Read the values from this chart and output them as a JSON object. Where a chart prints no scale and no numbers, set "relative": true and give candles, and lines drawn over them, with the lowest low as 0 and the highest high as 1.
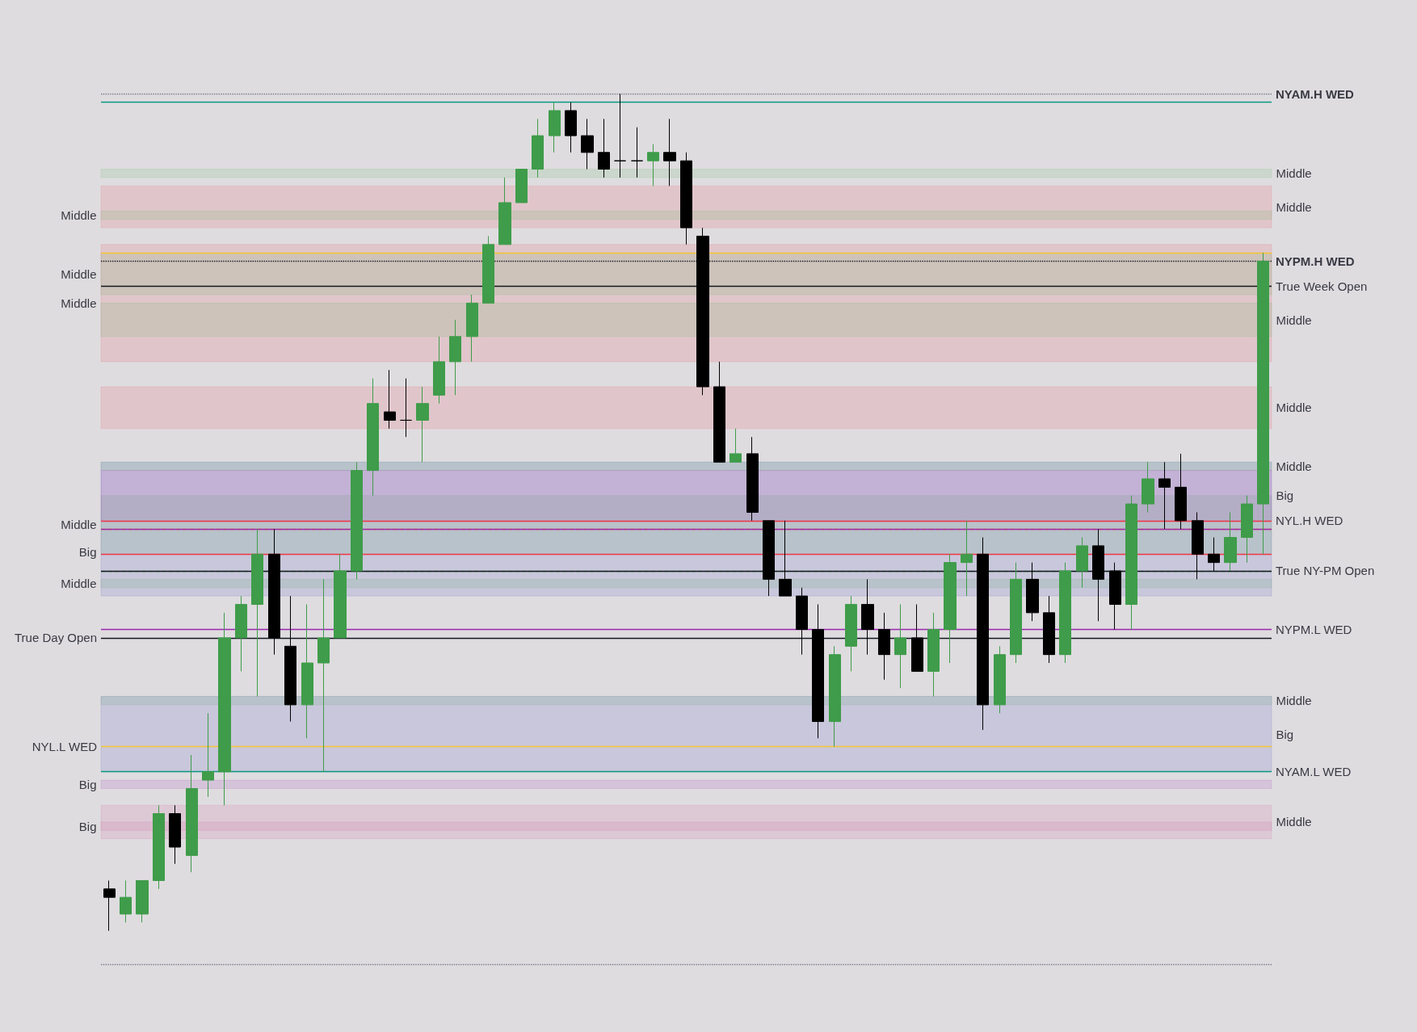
{
  "chart_data": {
    "type": "candlestick",
    "relative": true,
    "categories": [
      null,
      null,
      null,
      null,
      null,
      null,
      null,
      null,
      null,
      null,
      null,
      null,
      null,
      null,
      null,
      null,
      null,
      null,
      null,
      null,
      null,
      null,
      null,
      null,
      null,
      null,
      null,
      null,
      null,
      null,
      null,
      null,
      null,
      null,
      null,
      null,
      null,
      null,
      null,
      null,
      null,
      null,
      null,
      null,
      null,
      null,
      null,
      null,
      null,
      null,
      null,
      null,
      null,
      null,
      null,
      null,
      null,
      null,
      null,
      null,
      null,
      null,
      null,
      null,
      null,
      null,
      null,
      null,
      null,
      null,
      null
    ],
    "ohlc": [
      [
        0.05,
        0.06,
        0.0,
        0.04
      ],
      [
        0.02,
        0.06,
        0.01,
        0.04
      ],
      [
        0.02,
        0.06,
        0.01,
        0.06
      ],
      [
        0.06,
        0.15,
        0.05,
        0.14
      ],
      [
        0.14,
        0.15,
        0.08,
        0.1
      ],
      [
        0.09,
        0.21,
        0.07,
        0.17
      ],
      [
        0.18,
        0.26,
        0.16,
        0.19
      ],
      [
        0.19,
        0.38,
        0.15,
        0.35
      ],
      [
        0.35,
        0.4,
        0.31,
        0.39
      ],
      [
        0.39,
        0.48,
        0.28,
        0.45
      ],
      [
        0.45,
        0.48,
        0.33,
        0.35
      ],
      [
        0.34,
        0.4,
        0.25,
        0.27
      ],
      [
        0.27,
        0.39,
        0.23,
        0.32
      ],
      [
        0.32,
        0.42,
        0.19,
        0.35
      ],
      [
        0.35,
        0.45,
        0.35,
        0.43
      ],
      [
        0.43,
        0.56,
        0.42,
        0.55
      ],
      [
        0.55,
        0.66,
        0.52,
        0.63
      ],
      [
        0.62,
        0.67,
        0.6,
        0.61
      ],
      [
        0.61,
        0.66,
        0.59,
        0.61
      ],
      [
        0.61,
        0.65,
        0.56,
        0.63
      ],
      [
        0.64,
        0.71,
        0.63,
        0.68
      ],
      [
        0.68,
        0.73,
        0.64,
        0.71
      ],
      [
        0.71,
        0.76,
        0.68,
        0.75
      ],
      [
        0.75,
        0.83,
        0.75,
        0.82
      ],
      [
        0.82,
        0.9,
        0.82,
        0.87
      ],
      [
        0.87,
        0.91,
        0.87,
        0.91
      ],
      [
        0.91,
        0.97,
        0.9,
        0.95
      ],
      [
        0.95,
        0.99,
        0.93,
        0.98
      ],
      [
        0.98,
        0.99,
        0.93,
        0.95
      ],
      [
        0.95,
        0.97,
        0.91,
        0.93
      ],
      [
        0.93,
        0.97,
        0.9,
        0.91
      ],
      [
        0.92,
        1.0,
        0.9,
        0.92
      ],
      [
        0.92,
        0.96,
        0.9,
        0.92
      ],
      [
        0.92,
        0.94,
        0.89,
        0.93
      ],
      [
        0.93,
        0.97,
        0.89,
        0.92
      ],
      [
        0.92,
        0.93,
        0.82,
        0.84
      ],
      [
        0.83,
        0.84,
        0.64,
        0.65
      ],
      [
        0.65,
        0.68,
        0.56,
        0.56
      ],
      [
        0.56,
        0.6,
        0.56,
        0.57
      ],
      [
        0.57,
        0.59,
        0.49,
        0.5
      ],
      [
        0.49,
        0.49,
        0.4,
        0.42
      ],
      [
        0.42,
        0.49,
        0.4,
        0.4
      ],
      [
        0.4,
        0.41,
        0.33,
        0.36
      ],
      [
        0.36,
        0.39,
        0.23,
        0.25
      ],
      [
        0.25,
        0.34,
        0.22,
        0.33
      ],
      [
        0.34,
        0.4,
        0.31,
        0.39
      ],
      [
        0.39,
        0.42,
        0.33,
        0.36
      ],
      [
        0.36,
        0.38,
        0.3,
        0.33
      ],
      [
        0.33,
        0.39,
        0.29,
        0.35
      ],
      [
        0.35,
        0.39,
        0.31,
        0.31
      ],
      [
        0.31,
        0.38,
        0.28,
        0.36
      ],
      [
        0.36,
        0.45,
        0.32,
        0.44
      ],
      [
        0.44,
        0.49,
        0.4,
        0.45
      ],
      [
        0.45,
        0.47,
        0.24,
        0.27
      ],
      [
        0.27,
        0.34,
        0.26,
        0.33
      ],
      [
        0.33,
        0.44,
        0.32,
        0.42
      ],
      [
        0.42,
        0.44,
        0.37,
        0.38
      ],
      [
        0.38,
        0.4,
        0.32,
        0.33
      ],
      [
        0.33,
        0.44,
        0.32,
        0.43
      ],
      [
        0.43,
        0.47,
        0.41,
        0.46
      ],
      [
        0.46,
        0.48,
        0.37,
        0.42
      ],
      [
        0.43,
        0.44,
        0.36,
        0.39
      ],
      [
        0.39,
        0.52,
        0.36,
        0.51
      ],
      [
        0.51,
        0.56,
        0.5,
        0.54
      ],
      [
        0.54,
        0.56,
        0.48,
        0.53
      ],
      [
        0.53,
        0.57,
        0.48,
        0.49
      ],
      [
        0.49,
        0.5,
        0.42,
        0.45
      ],
      [
        0.45,
        0.47,
        0.43,
        0.44
      ],
      [
        0.44,
        0.5,
        0.43,
        0.47
      ],
      [
        0.47,
        0.52,
        0.44,
        0.51
      ],
      [
        0.51,
        0.81,
        0.45,
        0.8
      ]
    ],
    "colors": [
      "#000000",
      "#3f9c4a",
      "#3f9c4a",
      "#3f9c4a",
      "#000000",
      "#3f9c4a",
      "#3f9c4a",
      "#3f9c4a",
      "#3f9c4a",
      "#3f9c4a",
      "#000000",
      "#000000",
      "#3f9c4a",
      "#3f9c4a",
      "#3f9c4a",
      "#3f9c4a",
      "#3f9c4a",
      "#000000",
      "#000000",
      "#3f9c4a",
      "#3f9c4a",
      "#3f9c4a",
      "#3f9c4a",
      "#3f9c4a",
      "#3f9c4a",
      "#3f9c4a",
      "#3f9c4a",
      "#3f9c4a",
      "#000000",
      "#000000",
      "#000000",
      "#000000",
      "#000000",
      "#3f9c4a",
      "#000000",
      "#000000",
      "#000000",
      "#000000",
      "#3f9c4a",
      "#000000",
      "#000000",
      "#000000",
      "#000000",
      "#000000",
      "#3f9c4a",
      "#3f9c4a",
      "#000000",
      "#000000",
      "#3f9c4a",
      "#000000",
      "#3f9c4a",
      "#3f9c4a",
      "#3f9c4a",
      "#000000",
      "#3f9c4a",
      "#3f9c4a",
      "#000000",
      "#000000",
      "#3f9c4a",
      "#3f9c4a",
      "#000000",
      "#000000",
      "#3f9c4a",
      "#3f9c4a",
      "#000000",
      "#000000",
      "#000000",
      "#000000",
      "#3f9c4a",
      "#3f9c4a",
      "#3f9c4a"
    ],
    "ref_lines": [
      {
        "axis": "y",
        "value": 1.0,
        "label": "NYAM.H WED",
        "color": "#787b86",
        "line_style": "dotted"
      },
      {
        "axis": "y",
        "value": 0.99,
        "color": "#089981",
        "line_style": "solid"
      },
      {
        "axis": "y",
        "value": 0.81,
        "color": "#f7c531",
        "line_style": "solid"
      },
      {
        "axis": "y",
        "value": 0.8,
        "label": "NYPM.H WED",
        "color": "#131722",
        "line_style": "dotted"
      },
      {
        "axis": "y",
        "value": 0.77,
        "label": "True Week Open",
        "color": "#131722",
        "line_style": "solid"
      },
      {
        "axis": "y",
        "value": 0.49,
        "label": "NYL.H WED",
        "color": "#f23645",
        "line_style": "solid"
      },
      {
        "axis": "y",
        "value": 0.48,
        "color": "#ff9800",
        "line_style": "dashed"
      },
      {
        "axis": "y",
        "value": 0.48,
        "color": "#9c27b0",
        "line_style": "solid"
      },
      {
        "axis": "y",
        "value": 0.45,
        "color": "#f23645",
        "line_style": "solid"
      },
      {
        "axis": "y",
        "value": 0.43,
        "color": "#66bb6a",
        "line_style": "dashed"
      },
      {
        "axis": "y",
        "value": 0.43,
        "label": "True NY-PM Open",
        "color": "#131722",
        "line_style": "solid"
      },
      {
        "axis": "y",
        "value": 0.36,
        "label": "NYPM.L WED",
        "color": "#9c27b0",
        "line_style": "solid"
      },
      {
        "axis": "y",
        "value": 0.35,
        "label": "True Day Open",
        "color": "#131722",
        "line_style": "solid"
      },
      {
        "axis": "y",
        "value": 0.22,
        "label": "NYL.L WED",
        "color": "#f7c531",
        "line_style": "solid"
      },
      {
        "axis": "y",
        "value": 0.19,
        "label": "NYAM.L WED",
        "color": "#089981",
        "line_style": "solid"
      },
      {
        "axis": "y",
        "value": -0.04,
        "color": "#787b86",
        "line_style": "dotted"
      }
    ],
    "bands": [
      {
        "axis": "y",
        "from": 0.84,
        "to": 0.89,
        "label": "Middle",
        "color": "#f23645"
      },
      {
        "axis": "y",
        "from": 0.68,
        "to": 0.82,
        "label": "Middle",
        "color": "#f23645"
      },
      {
        "axis": "y",
        "from": 0.6,
        "to": 0.65,
        "label": "Middle",
        "color": "#f23645"
      },
      {
        "axis": "y",
        "from": 0.9,
        "to": 0.91,
        "label": "Middle",
        "color": "#4caf50"
      },
      {
        "axis": "y",
        "from": 0.85,
        "to": 0.86,
        "label": "Middle",
        "color": "#4caf50"
      },
      {
        "axis": "y",
        "from": 0.76,
        "to": 0.81,
        "label": "Middle",
        "color": "#4caf50"
      },
      {
        "axis": "y",
        "from": 0.71,
        "to": 0.75,
        "label": "Middle",
        "color": "#4caf50"
      },
      {
        "axis": "y",
        "from": 0.55,
        "to": 0.56,
        "label": "Middle",
        "color": "#4caf50"
      },
      {
        "axis": "y",
        "from": 0.45,
        "to": 0.52,
        "label": "Middle",
        "color": "#4caf50"
      },
      {
        "axis": "y",
        "from": 0.41,
        "to": 0.42,
        "label": "Middle",
        "color": "#4caf50"
      },
      {
        "axis": "y",
        "from": 0.27,
        "to": 0.28,
        "label": "Middle",
        "color": "#4caf50"
      },
      {
        "axis": "y",
        "from": 0.4,
        "to": 0.56,
        "label": "Big",
        "color": "#3f3fbf"
      },
      {
        "axis": "y",
        "from": 0.19,
        "to": 0.28,
        "label": "Big",
        "color": "#3f3fbf"
      },
      {
        "axis": "y",
        "from": 0.49,
        "to": 0.55,
        "label": "Big",
        "color": "#9c27b0"
      },
      {
        "axis": "y",
        "from": 0.17,
        "to": 0.18,
        "label": "Big",
        "color": "#9c27b0"
      },
      {
        "axis": "y",
        "from": 0.11,
        "to": 0.15,
        "label": "Middle",
        "color": "#d05090"
      },
      {
        "axis": "y",
        "from": 0.12,
        "to": 0.13,
        "label": "Big",
        "color": "#d05090"
      }
    ]
  }
}
